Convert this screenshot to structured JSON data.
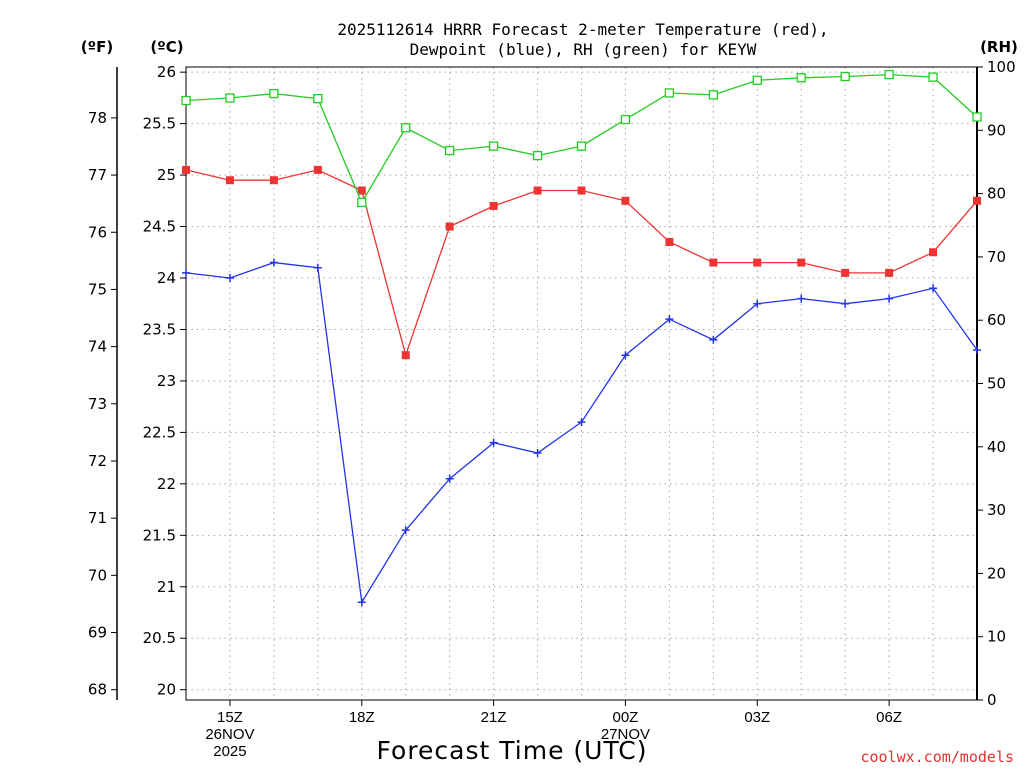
{
  "chart_data": {
    "type": "line",
    "title_line1": "2025112614 HRRR Forecast 2-meter Temperature (red),",
    "title_line2": "Dewpoint (blue), RH (green) for KEYW",
    "xlabel": "Forecast Time (UTC)",
    "credit": "coolwx.com/models",
    "units": {
      "fahrenheit": "(ºF)",
      "celsius": "(ºC)",
      "rh": "(RH)"
    },
    "x_hours_utc": [
      14,
      15,
      16,
      17,
      18,
      19,
      20,
      21,
      22,
      23,
      24,
      25,
      26,
      27,
      28,
      29,
      30,
      31,
      32
    ],
    "x_ticks": [
      {
        "hour": 15,
        "lines": [
          "15Z",
          "26NOV",
          "2025"
        ]
      },
      {
        "hour": 18,
        "lines": [
          "18Z"
        ]
      },
      {
        "hour": 21,
        "lines": [
          "21Z"
        ]
      },
      {
        "hour": 24,
        "lines": [
          "00Z",
          "27NOV"
        ]
      },
      {
        "hour": 27,
        "lines": [
          "03Z"
        ]
      },
      {
        "hour": 30,
        "lines": [
          "06Z"
        ]
      }
    ],
    "celsius_axis": {
      "range": [
        19.9,
        26.05
      ],
      "ticks": [
        "20",
        "20.5",
        "21",
        "21.5",
        "22",
        "22.5",
        "23",
        "23.5",
        "24",
        "24.5",
        "25",
        "25.5",
        "26"
      ]
    },
    "fahrenheit_axis": {
      "ticks": [
        "68",
        "69",
        "70",
        "71",
        "72",
        "73",
        "74",
        "75",
        "76",
        "77",
        "78"
      ]
    },
    "rh_axis": {
      "range": [
        0,
        100
      ],
      "ticks": [
        "0",
        "10",
        "20",
        "30",
        "40",
        "50",
        "60",
        "70",
        "80",
        "90",
        "100"
      ]
    },
    "series": [
      {
        "name": "2-meter Temperature",
        "axis": "celsius",
        "color": "#ee3333",
        "marker": "filled-square",
        "values": [
          25.05,
          24.95,
          24.95,
          25.05,
          24.85,
          23.25,
          24.5,
          24.7,
          24.85,
          24.85,
          24.75,
          24.35,
          24.15,
          24.15,
          24.15,
          24.05,
          24.05,
          24.25,
          24.75
        ]
      },
      {
        "name": "Dewpoint",
        "axis": "celsius",
        "color": "#2233ee",
        "marker": "plus",
        "values": [
          24.05,
          24.0,
          24.15,
          24.1,
          20.85,
          21.55,
          22.05,
          22.4,
          22.3,
          22.6,
          23.25,
          23.6,
          23.4,
          23.75,
          23.8,
          23.75,
          23.8,
          23.9,
          23.3
        ]
      },
      {
        "name": "RH",
        "axis": "rh",
        "color": "#22cc22",
        "marker": "open-square",
        "values": [
          94.7,
          95.1,
          95.8,
          95.0,
          78.6,
          90.4,
          86.8,
          87.5,
          86.0,
          87.5,
          91.7,
          95.9,
          95.6,
          97.9,
          98.3,
          98.5,
          98.8,
          98.4,
          92.1
        ]
      }
    ]
  }
}
